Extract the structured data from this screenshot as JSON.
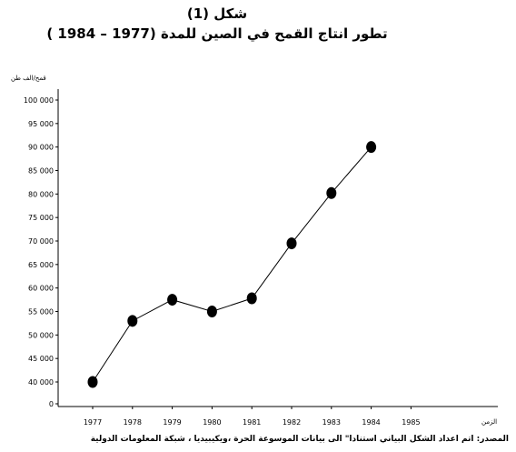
{
  "chart_data": {
    "type": "line",
    "title": "شكل (1)",
    "subtitle": "تطور انتاج القمح في الصين للمدة (1977 – 1984 )",
    "ylabel": "قمح/الف طن",
    "xlabel": "الزمن",
    "source": "المصدر:  اتم اعداد الشكل البياني استنادا\" الى بيانات الموسوعة الحرة ،ويكيبيديا ، شبكة المعلومات الدولية",
    "x_ticks": [
      "1977",
      "1978",
      "1979",
      "1980",
      "1981",
      "1982",
      "1983",
      "1984",
      "1985"
    ],
    "y_ticks": [
      "0",
      "40 000",
      "45 000",
      "50 000",
      "55 000",
      "60 000",
      "65 000",
      "70 000",
      "75 000",
      "80 000",
      "85 000",
      "90 000",
      "95 000",
      "100 000"
    ],
    "x": [
      1977,
      1978,
      1979,
      1980,
      1981,
      1982,
      1983,
      1984
    ],
    "values": [
      40000,
      53000,
      57500,
      55000,
      57800,
      69500,
      80200,
      90000
    ],
    "ylim": [
      0,
      100000
    ],
    "grid": false,
    "legend": "none"
  }
}
